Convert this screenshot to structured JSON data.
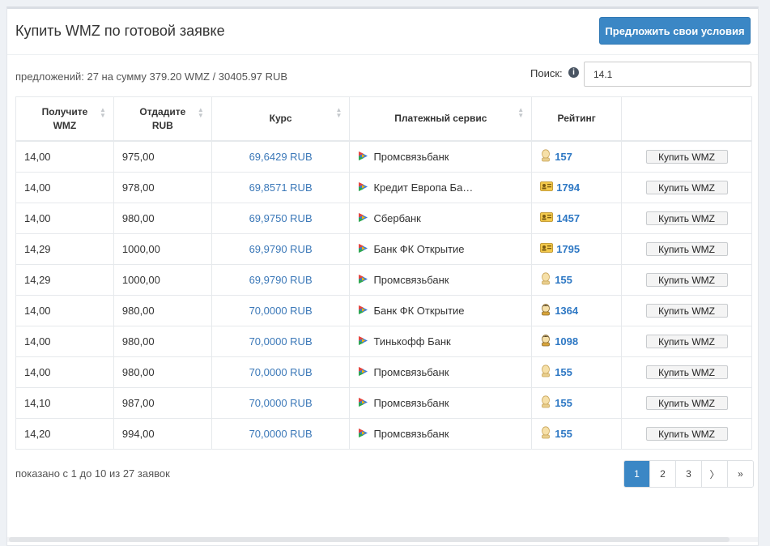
{
  "header": {
    "title": "Купить WMZ по готовой заявке",
    "offer_button": "Предложить свои условия"
  },
  "summary": "предложений: 27 на сумму 379.20 WMZ / 30405.97 RUB",
  "search": {
    "label": "Поиск:",
    "value": "14.1"
  },
  "table": {
    "headers": {
      "receive_line1": "Получите",
      "receive_line2": "WMZ",
      "give_line1": "Отдадите",
      "give_line2": "RUB",
      "rate": "Курс",
      "service": "Платежный сервис",
      "rating": "Рейтинг"
    },
    "rows": [
      {
        "receive": "14,00",
        "give": "975,00",
        "rate": "69,6429 RUB",
        "service": "Промсвязьбанк",
        "rating": "157",
        "badge": "face-light",
        "action": "Купить WMZ"
      },
      {
        "receive": "14,00",
        "give": "978,00",
        "rate": "69,8571 RUB",
        "service": "Кредит Европа Ба…",
        "rating": "1794",
        "badge": "id-card",
        "action": "Купить WMZ"
      },
      {
        "receive": "14,00",
        "give": "980,00",
        "rate": "69,9750 RUB",
        "service": "Сбербанк",
        "rating": "1457",
        "badge": "id-card",
        "action": "Купить WMZ"
      },
      {
        "receive": "14,29",
        "give": "1000,00",
        "rate": "69,9790 RUB",
        "service": "Банк ФК Открытие",
        "rating": "1795",
        "badge": "id-card",
        "action": "Купить WMZ"
      },
      {
        "receive": "14,29",
        "give": "1000,00",
        "rate": "69,9790 RUB",
        "service": "Промсвязьбанк",
        "rating": "155",
        "badge": "face-light",
        "action": "Купить WMZ"
      },
      {
        "receive": "14,00",
        "give": "980,00",
        "rate": "70,0000 RUB",
        "service": "Банк ФК Открытие",
        "rating": "1364",
        "badge": "face-dark",
        "action": "Купить WMZ"
      },
      {
        "receive": "14,00",
        "give": "980,00",
        "rate": "70,0000 RUB",
        "service": "Тинькофф Банк",
        "rating": "1098",
        "badge": "face-dark",
        "action": "Купить WMZ"
      },
      {
        "receive": "14,00",
        "give": "980,00",
        "rate": "70,0000 RUB",
        "service": "Промсвязьбанк",
        "rating": "155",
        "badge": "face-light",
        "action": "Купить WMZ"
      },
      {
        "receive": "14,10",
        "give": "987,00",
        "rate": "70,0000 RUB",
        "service": "Промсвязьбанк",
        "rating": "155",
        "badge": "face-light",
        "action": "Купить WMZ"
      },
      {
        "receive": "14,20",
        "give": "994,00",
        "rate": "70,0000 RUB",
        "service": "Промсвязьбанк",
        "rating": "155",
        "badge": "face-light",
        "action": "Купить WMZ"
      }
    ]
  },
  "footer": {
    "shown": "показано с 1 до 10 из 27 заявок"
  },
  "pagination": {
    "pages": [
      "1",
      "2",
      "3"
    ],
    "active": "1",
    "next": "〉",
    "last": "»"
  },
  "colors": {
    "accent": "#3b87c5",
    "link": "#2e78c4",
    "rate": "#3b78b8"
  }
}
